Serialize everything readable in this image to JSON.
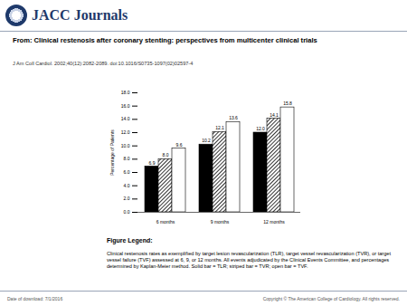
{
  "header": {
    "logo": "JACC Journals",
    "from": "From: Clinical restenosis after coronary stenting: perspectives from multicenter clinical trials",
    "citation": "J Am Coll Cardiol. 2002;40(12):2082-2089. doi:10.1016/S0735-1097(02)02597-4"
  },
  "chart_data": {
    "type": "bar",
    "y_label": "Percentage of Patients",
    "categories": [
      "6 months",
      "9 months",
      "12 months"
    ],
    "series": [
      {
        "color": "#000000",
        "values": [
          6.9,
          10.2,
          12.0
        ],
        "value_labels": [
          "6.9",
          "10.2",
          "12.0"
        ]
      },
      {
        "color": "#000000",
        "line_style": "hatched",
        "values": [
          8.0,
          12.1,
          14.1
        ],
        "value_labels": [
          "8.0",
          "12.1",
          "14.1"
        ]
      },
      {
        "color": "#ffffff",
        "values": [
          9.6,
          13.6,
          15.8
        ],
        "value_labels": [
          "9.6",
          "13.6",
          "15.8"
        ]
      }
    ],
    "ylim": [
      0,
      18
    ],
    "yticks": [
      {
        "value": 0,
        "label": "0.0"
      },
      {
        "value": 2,
        "label": "2.0"
      },
      {
        "value": 4,
        "label": "4.0"
      },
      {
        "value": 6,
        "label": "6.0"
      },
      {
        "value": 8,
        "label": "8.0"
      },
      {
        "value": 10,
        "label": "10.0"
      },
      {
        "value": 12,
        "label": "12.0"
      },
      {
        "value": 14,
        "label": "14.0"
      },
      {
        "value": 16,
        "label": "16.0"
      },
      {
        "value": 18,
        "label": "18.0"
      }
    ],
    "data_labels": true,
    "grid": false
  },
  "figure_legend": {
    "heading": "Figure Legend:",
    "text": "Clinical restenosis rates as exemplified by target lesion revascularization (TLR), target vessel revascularization (TVR), or target vessel failure (TVF) assessed at 6, 9, or 12 months. All events adjudicated by the Clinical Events Committee, and percentages determined by Kaplan-Meier method. Solid bar = TLR; striped bar = TVR; open bar = TVF."
  },
  "footer": {
    "date": "Date of download: 7/1/2016",
    "copyright": "Copyright © The American College of Cardiology. All rights reserved."
  }
}
